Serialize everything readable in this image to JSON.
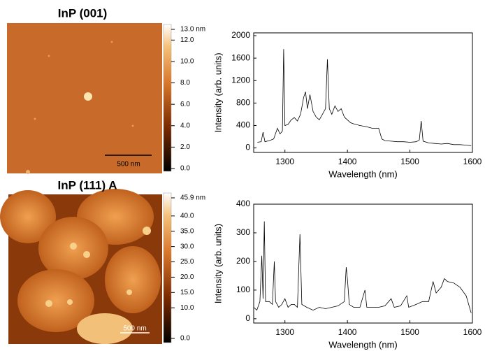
{
  "panels": [
    {
      "title": "InP (001)",
      "scale_bar": "500 nm",
      "colorbar": [
        {
          "value": 13,
          "label": "13.0 nm"
        },
        {
          "value": 12,
          "label": "12.0"
        },
        {
          "value": 10,
          "label": "10.0"
        },
        {
          "value": 8,
          "label": "8.0"
        },
        {
          "value": 6,
          "label": "6.0"
        },
        {
          "value": 4,
          "label": "4.0"
        },
        {
          "value": 2,
          "label": "2.0"
        },
        {
          "value": 0,
          "label": "0.0"
        }
      ]
    },
    {
      "title": "InP (111) A",
      "scale_bar": "500 nm",
      "colorbar": [
        {
          "value": 45.9,
          "label": "45.9 nm"
        },
        {
          "value": 40,
          "label": "40.0"
        },
        {
          "value": 35,
          "label": "35.0"
        },
        {
          "value": 30,
          "label": "30.0"
        },
        {
          "value": 25,
          "label": "25.0"
        },
        {
          "value": 20,
          "label": "20.0"
        },
        {
          "value": 15,
          "label": "15.0"
        },
        {
          "value": 10,
          "label": "10.0"
        },
        {
          "value": 0,
          "label": "0.0"
        }
      ]
    }
  ],
  "chart_data": [
    {
      "type": "line",
      "xlabel": "Wavelength (nm)",
      "ylabel": "Intensity (arb. units)",
      "color": "#000000",
      "x": [
        1256,
        1262,
        1265,
        1268,
        1275,
        1282,
        1288,
        1292,
        1296,
        1298,
        1300,
        1305,
        1310,
        1315,
        1320,
        1325,
        1330,
        1333,
        1336,
        1340,
        1345,
        1350,
        1355,
        1360,
        1365,
        1368,
        1371,
        1375,
        1380,
        1385,
        1390,
        1395,
        1400,
        1405,
        1410,
        1420,
        1430,
        1440,
        1450,
        1455,
        1460,
        1470,
        1480,
        1490,
        1500,
        1510,
        1515,
        1518,
        1521,
        1530,
        1540,
        1550,
        1560,
        1570,
        1580,
        1590,
        1598
      ],
      "values": [
        100,
        110,
        280,
        110,
        130,
        160,
        350,
        250,
        300,
        1760,
        400,
        420,
        500,
        540,
        480,
        600,
        900,
        1000,
        700,
        950,
        650,
        550,
        500,
        600,
        700,
        1580,
        700,
        600,
        750,
        650,
        700,
        550,
        500,
        450,
        430,
        400,
        380,
        350,
        350,
        160,
        130,
        120,
        110,
        110,
        100,
        110,
        140,
        480,
        120,
        90,
        80,
        70,
        80,
        60,
        60,
        50,
        40
      ],
      "xlim": [
        1250,
        1600
      ],
      "ylim": [
        -80,
        2050
      ],
      "xticks": [
        1300,
        1400,
        1500,
        1600
      ],
      "yticks": [
        0,
        400,
        800,
        1200,
        1600,
        2000
      ]
    },
    {
      "type": "line",
      "xlabel": "Wavelength (nm)",
      "ylabel": "Intensity (arb. units)",
      "color": "#000000",
      "x": [
        1250,
        1255,
        1260,
        1263,
        1265,
        1267,
        1269,
        1275,
        1280,
        1283,
        1285,
        1290,
        1295,
        1300,
        1305,
        1310,
        1315,
        1320,
        1324,
        1327,
        1335,
        1345,
        1355,
        1365,
        1375,
        1385,
        1395,
        1398,
        1400,
        1403,
        1410,
        1420,
        1428,
        1431,
        1440,
        1450,
        1460,
        1470,
        1475,
        1485,
        1495,
        1498,
        1510,
        1520,
        1530,
        1537,
        1542,
        1550,
        1555,
        1560,
        1570,
        1580,
        1590,
        1598
      ],
      "values": [
        40,
        30,
        60,
        220,
        70,
        340,
        60,
        60,
        50,
        200,
        60,
        40,
        50,
        70,
        40,
        50,
        50,
        40,
        295,
        50,
        40,
        30,
        40,
        35,
        40,
        45,
        60,
        180,
        140,
        50,
        40,
        40,
        100,
        40,
        40,
        40,
        45,
        70,
        40,
        45,
        80,
        40,
        50,
        60,
        60,
        130,
        90,
        110,
        140,
        130,
        125,
        110,
        80,
        20
      ],
      "xlim": [
        1250,
        1600
      ],
      "ylim": [
        -15,
        400
      ],
      "xticks": [
        1300,
        1400,
        1500,
        1600
      ],
      "yticks": [
        0,
        100,
        200,
        300,
        400
      ]
    }
  ]
}
